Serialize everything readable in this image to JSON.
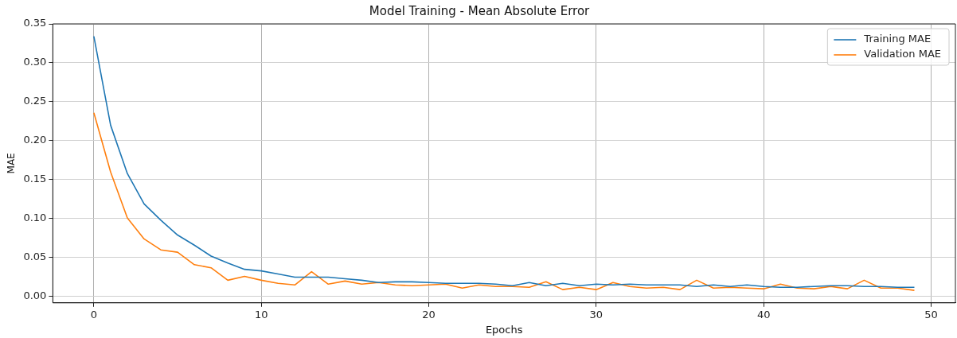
{
  "chart_data": {
    "type": "line",
    "title": "Model Training - Mean Absolute Error",
    "xlabel": "Epochs",
    "ylabel": "MAE",
    "x": [
      0,
      1,
      2,
      3,
      4,
      5,
      6,
      7,
      8,
      9,
      10,
      11,
      12,
      13,
      14,
      15,
      16,
      17,
      18,
      19,
      20,
      21,
      22,
      23,
      24,
      25,
      26,
      27,
      28,
      29,
      30,
      31,
      32,
      33,
      34,
      35,
      36,
      37,
      38,
      39,
      40,
      41,
      42,
      43,
      44,
      45,
      46,
      47,
      48,
      49
    ],
    "series": [
      {
        "name": "Training MAE",
        "color": "#1f77b4",
        "values": [
          0.334,
          0.22,
          0.158,
          0.119,
          0.098,
          0.079,
          0.066,
          0.052,
          0.043,
          0.035,
          0.033,
          0.029,
          0.025,
          0.025,
          0.025,
          0.023,
          0.021,
          0.018,
          0.019,
          0.019,
          0.018,
          0.017,
          0.017,
          0.017,
          0.016,
          0.014,
          0.018,
          0.014,
          0.017,
          0.014,
          0.016,
          0.015,
          0.016,
          0.015,
          0.015,
          0.015,
          0.013,
          0.015,
          0.013,
          0.015,
          0.013,
          0.012,
          0.012,
          0.013,
          0.014,
          0.014,
          0.013,
          0.013,
          0.012,
          0.012
        ]
      },
      {
        "name": "Validation MAE",
        "color": "#ff7f0e",
        "values": [
          0.236,
          0.16,
          0.101,
          0.074,
          0.06,
          0.057,
          0.041,
          0.037,
          0.021,
          0.026,
          0.021,
          0.017,
          0.015,
          0.032,
          0.016,
          0.02,
          0.016,
          0.018,
          0.015,
          0.014,
          0.015,
          0.016,
          0.011,
          0.015,
          0.013,
          0.013,
          0.012,
          0.019,
          0.009,
          0.012,
          0.009,
          0.018,
          0.013,
          0.011,
          0.012,
          0.009,
          0.021,
          0.011,
          0.012,
          0.011,
          0.01,
          0.016,
          0.011,
          0.01,
          0.013,
          0.01,
          0.021,
          0.011,
          0.011,
          0.008
        ]
      }
    ],
    "xlim": [
      -2.45,
      51.45
    ],
    "xticks": [
      0,
      10,
      20,
      30,
      40,
      50
    ],
    "ylim": [
      -0.008,
      0.35
    ],
    "yticks": [
      {
        "value": 0,
        "label": "0.00"
      },
      {
        "value": 0.05,
        "label": "0.05"
      },
      {
        "value": 0.1,
        "label": "0.10"
      },
      {
        "value": 0.15,
        "label": "0.15"
      },
      {
        "value": 0.2,
        "label": "0.20"
      },
      {
        "value": 0.25,
        "label": "0.25"
      },
      {
        "value": 0.3,
        "label": "0.30"
      },
      {
        "value": 0.35,
        "label": "0.35"
      }
    ],
    "grid": true,
    "legend": "top right",
    "marker": "none",
    "line_style": "solid"
  }
}
